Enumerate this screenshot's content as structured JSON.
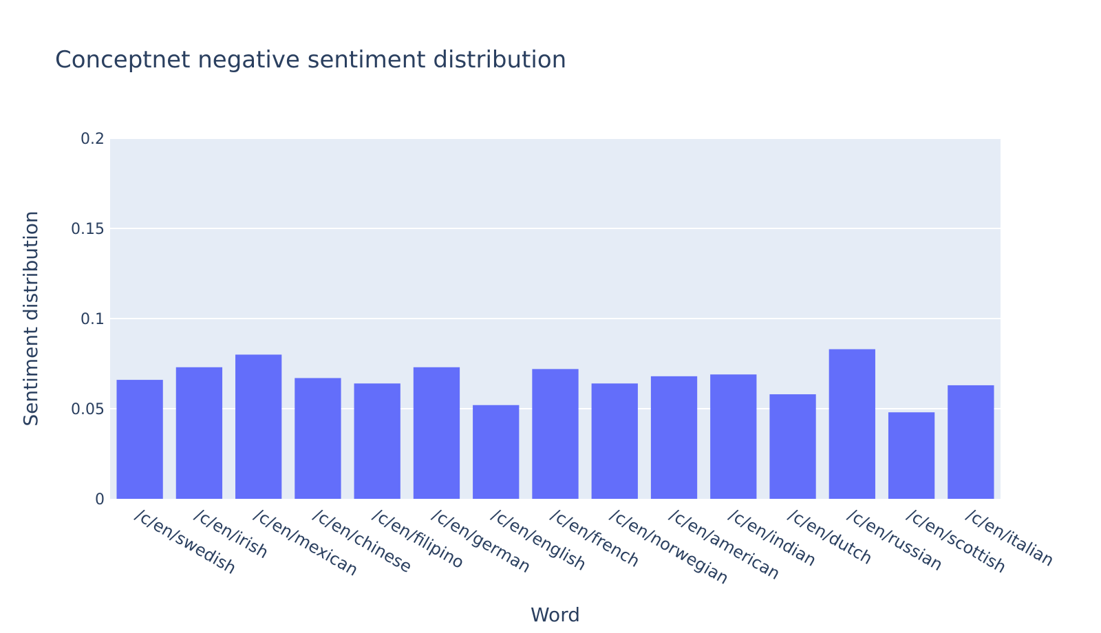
{
  "chart_data": {
    "type": "bar",
    "title": "Conceptnet negative sentiment distribution",
    "xlabel": "Word",
    "ylabel": "Sentiment distribution",
    "categories": [
      "/c/en/swedish",
      "/c/en/irish",
      "/c/en/mexican",
      "/c/en/chinese",
      "/c/en/filipino",
      "/c/en/german",
      "/c/en/english",
      "/c/en/french",
      "/c/en/norwegian",
      "/c/en/american",
      "/c/en/indian",
      "/c/en/dutch",
      "/c/en/russian",
      "/c/en/scottish",
      "/c/en/italian"
    ],
    "values": [
      0.066,
      0.073,
      0.08,
      0.067,
      0.064,
      0.073,
      0.052,
      0.072,
      0.064,
      0.068,
      0.069,
      0.058,
      0.083,
      0.048,
      0.063
    ],
    "ylim": [
      0,
      0.2
    ],
    "yticks": [
      0,
      0.05,
      0.1,
      0.15,
      0.2
    ],
    "ytick_labels": [
      "0",
      "0.05",
      "0.1",
      "0.15",
      "0.2"
    ],
    "grid": true,
    "colors": {
      "bar": "#636efa",
      "plot_bg": "#e5ecf6",
      "grid": "#ffffff",
      "text": "#2a3f5f"
    }
  }
}
